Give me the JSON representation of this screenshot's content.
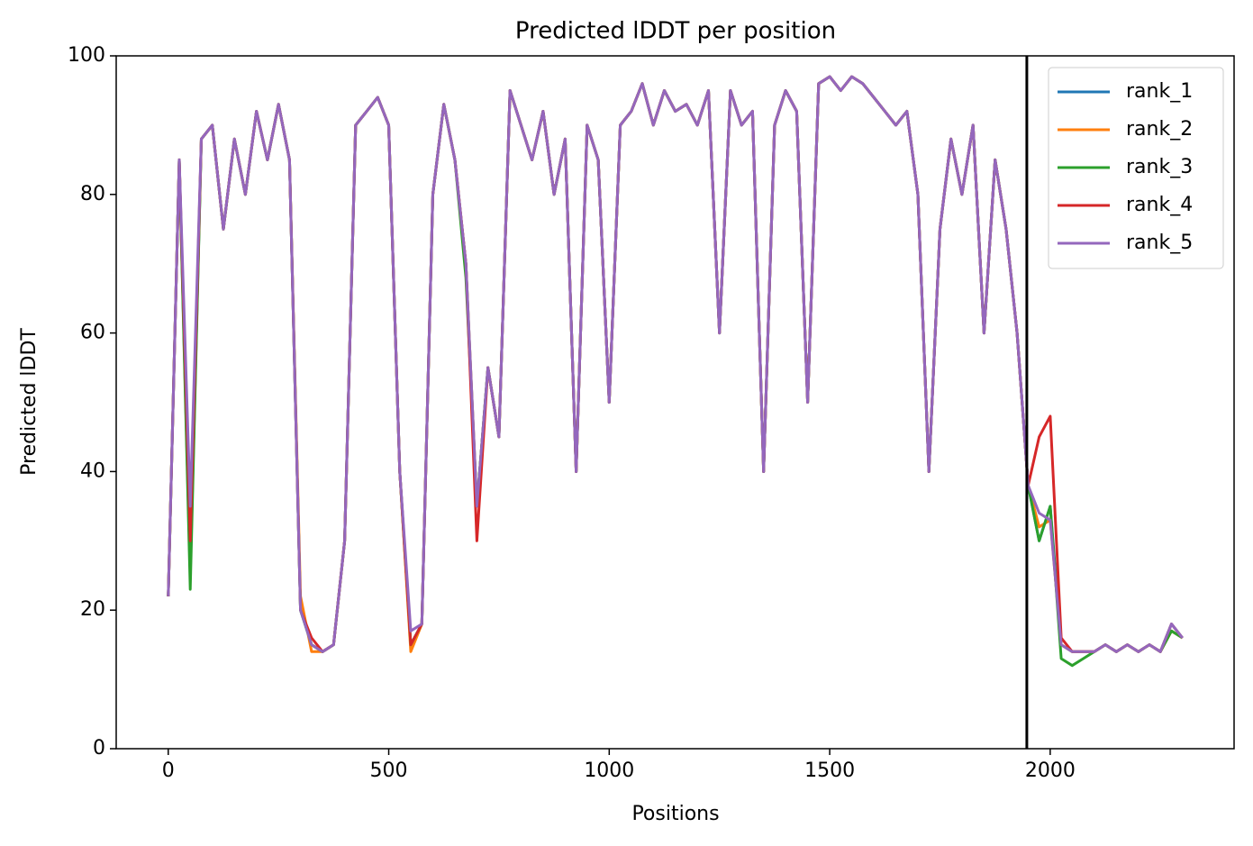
{
  "chart_data": {
    "type": "line",
    "title": "Predicted lDDT per position",
    "xlabel": "Positions",
    "ylabel": "Predicted lDDT",
    "xlim": [
      -118,
      2417
    ],
    "ylim": [
      0,
      100
    ],
    "xticks": [
      0,
      500,
      1000,
      1500,
      2000
    ],
    "yticks": [
      0,
      20,
      40,
      60,
      80,
      100
    ],
    "grid": false,
    "legend": "upper right",
    "vline": 1947,
    "vline_color": "#000000",
    "x": [
      0,
      25,
      50,
      75,
      100,
      125,
      150,
      175,
      200,
      225,
      250,
      275,
      300,
      325,
      350,
      375,
      400,
      425,
      450,
      475,
      500,
      525,
      550,
      575,
      600,
      625,
      650,
      675,
      700,
      725,
      750,
      775,
      800,
      825,
      850,
      875,
      900,
      925,
      950,
      975,
      1000,
      1025,
      1050,
      1075,
      1100,
      1125,
      1150,
      1175,
      1200,
      1225,
      1250,
      1275,
      1300,
      1325,
      1350,
      1375,
      1400,
      1425,
      1450,
      1475,
      1500,
      1525,
      1550,
      1575,
      1600,
      1625,
      1650,
      1675,
      1700,
      1725,
      1750,
      1775,
      1800,
      1825,
      1850,
      1875,
      1900,
      1925,
      1950,
      1975,
      2000,
      2025,
      2050,
      2075,
      2100,
      2125,
      2150,
      2175,
      2200,
      2225,
      2250,
      2275,
      2300
    ],
    "series": [
      {
        "name": "rank_1",
        "color": "#1f77b4",
        "values": [
          22,
          85,
          25,
          88,
          90,
          75,
          88,
          80,
          92,
          85,
          93,
          85,
          20,
          15,
          14,
          15,
          30,
          90,
          92,
          94,
          90,
          40,
          15,
          18,
          80,
          93,
          85,
          70,
          35,
          55,
          45,
          95,
          90,
          85,
          92,
          80,
          88,
          40,
          90,
          85,
          50,
          90,
          92,
          96,
          90,
          95,
          92,
          93,
          90,
          95,
          60,
          95,
          90,
          92,
          40,
          90,
          95,
          92,
          50,
          96,
          97,
          95,
          97,
          96,
          94,
          92,
          90,
          92,
          80,
          40,
          75,
          88,
          80,
          90,
          60,
          85,
          75,
          60,
          38,
          30,
          35,
          15,
          14,
          14,
          14,
          15,
          14,
          15,
          14,
          15,
          14,
          18,
          16
        ]
      },
      {
        "name": "rank_2",
        "color": "#ff7f0e",
        "values": [
          22,
          85,
          27,
          88,
          90,
          75,
          88,
          80,
          92,
          85,
          93,
          85,
          22,
          14,
          14,
          15,
          30,
          90,
          92,
          94,
          90,
          40,
          14,
          18,
          80,
          93,
          85,
          70,
          35,
          55,
          45,
          95,
          90,
          85,
          92,
          80,
          88,
          40,
          90,
          85,
          50,
          90,
          92,
          96,
          90,
          95,
          92,
          93,
          90,
          95,
          60,
          95,
          90,
          92,
          40,
          90,
          95,
          92,
          50,
          96,
          97,
          95,
          97,
          96,
          94,
          92,
          90,
          92,
          80,
          40,
          75,
          88,
          80,
          90,
          60,
          85,
          75,
          60,
          38,
          32,
          33,
          15,
          14,
          14,
          14,
          15,
          14,
          15,
          14,
          15,
          14,
          17,
          16
        ]
      },
      {
        "name": "rank_3",
        "color": "#2ca02c",
        "values": [
          22,
          85,
          23,
          88,
          90,
          75,
          88,
          80,
          92,
          85,
          93,
          85,
          20,
          15,
          14,
          15,
          30,
          90,
          92,
          94,
          90,
          40,
          15,
          18,
          80,
          93,
          85,
          68,
          35,
          55,
          45,
          95,
          90,
          85,
          92,
          80,
          88,
          40,
          90,
          85,
          50,
          90,
          92,
          96,
          90,
          95,
          92,
          93,
          90,
          95,
          60,
          95,
          90,
          92,
          40,
          90,
          95,
          92,
          50,
          96,
          97,
          95,
          97,
          96,
          94,
          92,
          90,
          92,
          80,
          40,
          75,
          88,
          80,
          90,
          60,
          85,
          75,
          60,
          38,
          30,
          35,
          13,
          12,
          13,
          14,
          15,
          14,
          15,
          14,
          15,
          14,
          17,
          16
        ]
      },
      {
        "name": "rank_4",
        "color": "#d62728",
        "values": [
          22,
          85,
          30,
          88,
          90,
          75,
          88,
          80,
          92,
          85,
          93,
          85,
          20,
          16,
          14,
          15,
          30,
          90,
          92,
          94,
          90,
          40,
          15,
          18,
          80,
          93,
          85,
          70,
          30,
          55,
          45,
          95,
          90,
          85,
          92,
          80,
          88,
          40,
          90,
          85,
          50,
          90,
          92,
          96,
          90,
          95,
          92,
          93,
          90,
          95,
          60,
          95,
          90,
          92,
          40,
          90,
          95,
          92,
          50,
          96,
          97,
          95,
          97,
          96,
          94,
          92,
          90,
          92,
          80,
          40,
          75,
          88,
          80,
          90,
          60,
          85,
          75,
          60,
          38,
          45,
          48,
          16,
          14,
          14,
          14,
          15,
          14,
          15,
          14,
          15,
          14,
          18,
          16
        ]
      },
      {
        "name": "rank_5",
        "color": "#9467bd",
        "values": [
          22,
          85,
          35,
          88,
          90,
          75,
          88,
          80,
          92,
          85,
          93,
          85,
          20,
          15,
          14,
          15,
          30,
          90,
          92,
          94,
          90,
          40,
          17,
          18,
          80,
          93,
          85,
          70,
          35,
          55,
          45,
          95,
          90,
          85,
          92,
          80,
          88,
          40,
          90,
          85,
          50,
          90,
          92,
          96,
          90,
          95,
          92,
          93,
          90,
          95,
          60,
          95,
          90,
          92,
          40,
          90,
          95,
          92,
          50,
          96,
          97,
          95,
          97,
          96,
          94,
          92,
          90,
          92,
          80,
          40,
          75,
          88,
          80,
          90,
          60,
          85,
          75,
          60,
          38,
          34,
          33,
          15,
          14,
          14,
          14,
          15,
          14,
          15,
          14,
          15,
          14,
          18,
          16
        ]
      }
    ]
  }
}
